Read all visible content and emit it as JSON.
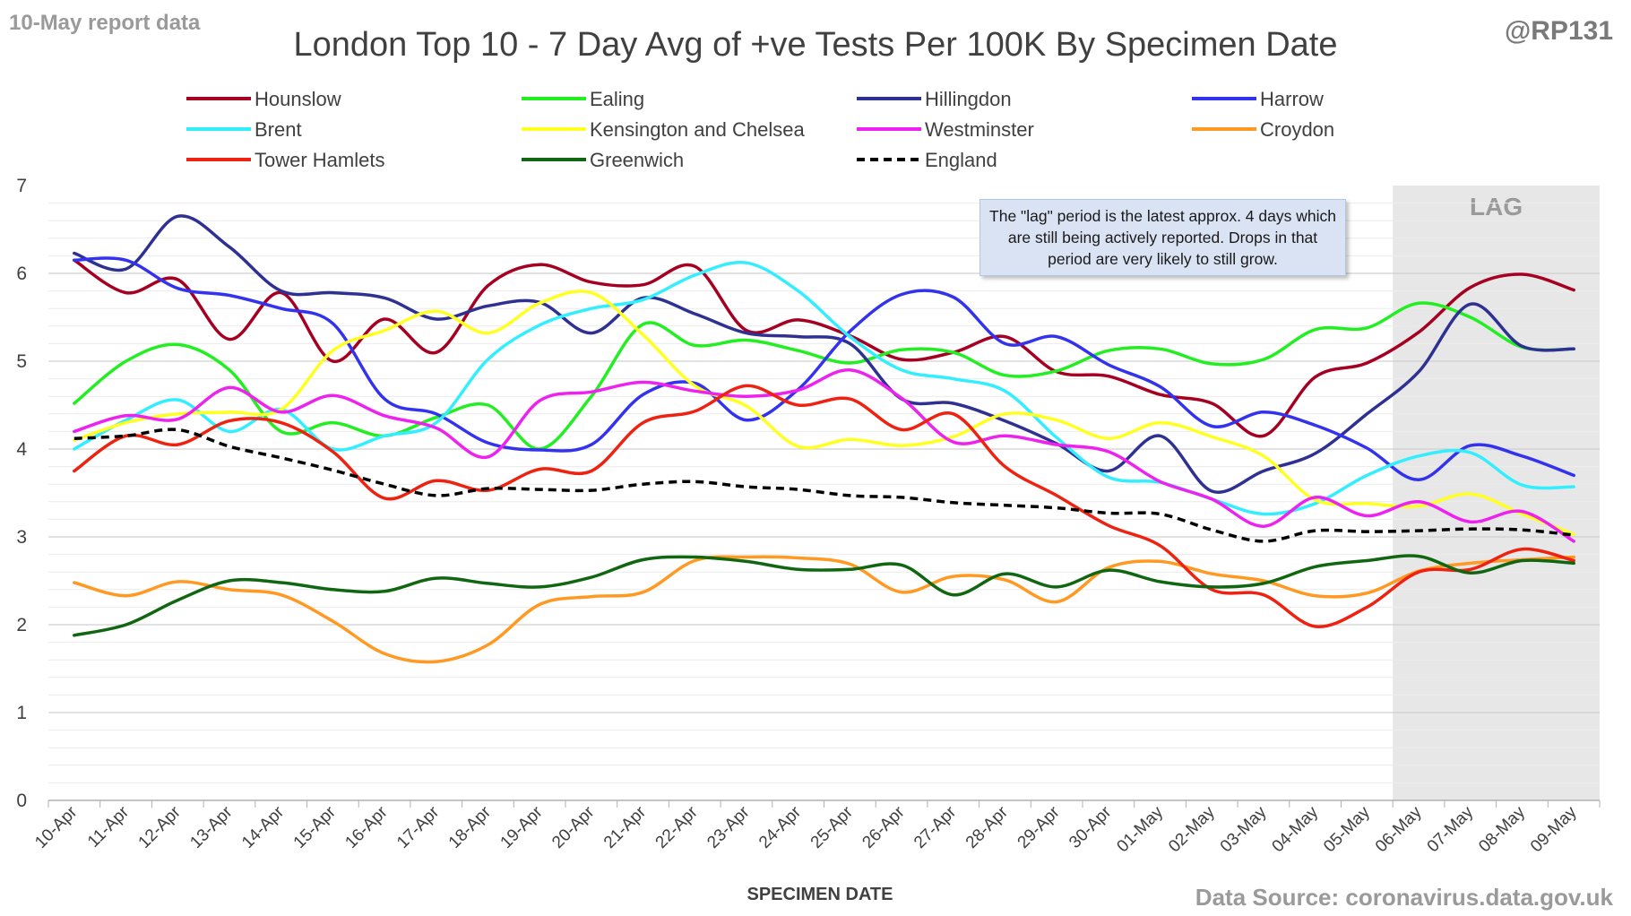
{
  "header": {
    "report_label": "10-May report data",
    "handle": "@RP131",
    "source": "Data Source: coronavirus.data.gov.uk"
  },
  "note": "The \"lag\" period is the latest approx. 4 days which are still being actively reported. Drops in that period are very likely to still grow.",
  "chart_data": {
    "type": "line",
    "title": "London Top 10 - 7 Day Avg of +ve Tests Per 100K By Specimen Date",
    "xlabel": "SPECIMEN DATE",
    "ylabel": "",
    "ylim": [
      0,
      7
    ],
    "yticks": [
      0,
      1,
      2,
      3,
      4,
      5,
      6,
      7
    ],
    "grid": true,
    "legend_position": "top",
    "lag_region": {
      "label": "LAG",
      "from": "06-May",
      "to": "09-May",
      "color": "#e7e7e7"
    },
    "categories": [
      "10-Apr",
      "11-Apr",
      "12-Apr",
      "13-Apr",
      "14-Apr",
      "15-Apr",
      "16-Apr",
      "17-Apr",
      "18-Apr",
      "19-Apr",
      "20-Apr",
      "21-Apr",
      "22-Apr",
      "23-Apr",
      "24-Apr",
      "25-Apr",
      "26-Apr",
      "27-Apr",
      "28-Apr",
      "29-Apr",
      "30-Apr",
      "01-May",
      "02-May",
      "03-May",
      "04-May",
      "05-May",
      "06-May",
      "07-May",
      "08-May",
      "09-May"
    ],
    "series": [
      {
        "name": "Hounslow",
        "color": "#a50021",
        "dash": false,
        "values": [
          6.15,
          5.78,
          5.93,
          5.25,
          5.78,
          5.0,
          5.48,
          5.1,
          5.86,
          6.1,
          5.9,
          5.87,
          6.08,
          5.35,
          5.47,
          5.29,
          5.02,
          5.1,
          5.28,
          4.88,
          4.83,
          4.62,
          4.52,
          4.15,
          4.82,
          4.98,
          5.33,
          5.84,
          5.99,
          5.81
        ]
      },
      {
        "name": "Ealing",
        "color": "#22ee22",
        "dash": false,
        "values": [
          4.52,
          5.0,
          5.19,
          4.9,
          4.2,
          4.3,
          4.15,
          4.36,
          4.5,
          4.0,
          4.6,
          5.42,
          5.18,
          5.24,
          5.12,
          4.98,
          5.13,
          5.1,
          4.84,
          4.89,
          5.12,
          5.14,
          4.97,
          5.02,
          5.36,
          5.38,
          5.66,
          5.5,
          5.16,
          5.14
        ]
      },
      {
        "name": "Hillingdon",
        "color": "#2e3192",
        "dash": false,
        "values": [
          6.23,
          6.05,
          6.65,
          6.3,
          5.8,
          5.78,
          5.72,
          5.48,
          5.63,
          5.67,
          5.32,
          5.72,
          5.54,
          5.32,
          5.28,
          5.2,
          4.57,
          4.52,
          4.32,
          4.06,
          3.75,
          4.15,
          3.52,
          3.75,
          3.95,
          4.4,
          4.88,
          5.65,
          5.17,
          5.14
        ]
      },
      {
        "name": "Harrow",
        "color": "#3333ee",
        "dash": false,
        "values": [
          6.15,
          6.15,
          5.83,
          5.75,
          5.6,
          5.43,
          4.57,
          4.4,
          4.07,
          3.99,
          4.05,
          4.62,
          4.75,
          4.33,
          4.68,
          5.34,
          5.76,
          5.73,
          5.2,
          5.28,
          4.96,
          4.71,
          4.26,
          4.42,
          4.27,
          4.01,
          3.65,
          4.04,
          3.92,
          3.7
        ]
      },
      {
        "name": "Brent",
        "color": "#33eeff",
        "dash": false,
        "values": [
          4.0,
          4.33,
          4.56,
          4.2,
          4.45,
          4.0,
          4.15,
          4.3,
          5.02,
          5.41,
          5.6,
          5.7,
          5.98,
          6.12,
          5.8,
          5.28,
          4.9,
          4.8,
          4.66,
          4.13,
          3.68,
          3.62,
          3.43,
          3.26,
          3.38,
          3.7,
          3.92,
          3.96,
          3.59,
          3.57
        ]
      },
      {
        "name": "Kensington and Chelsea",
        "color": "#ffff22",
        "dash": false,
        "values": [
          4.1,
          4.3,
          4.4,
          4.42,
          4.45,
          5.12,
          5.35,
          5.57,
          5.32,
          5.66,
          5.78,
          5.3,
          4.72,
          4.49,
          4.03,
          4.11,
          4.04,
          4.14,
          4.4,
          4.33,
          4.12,
          4.3,
          4.14,
          3.92,
          3.42,
          3.38,
          3.35,
          3.49,
          3.26,
          3.03
        ]
      },
      {
        "name": "Westminster",
        "color": "#ee22ee",
        "dash": false,
        "values": [
          4.2,
          4.38,
          4.34,
          4.7,
          4.42,
          4.61,
          4.38,
          4.24,
          3.91,
          4.55,
          4.65,
          4.76,
          4.66,
          4.6,
          4.67,
          4.9,
          4.58,
          4.08,
          4.15,
          4.05,
          3.97,
          3.63,
          3.43,
          3.12,
          3.45,
          3.24,
          3.4,
          3.17,
          3.29,
          2.95
        ]
      },
      {
        "name": "Croydon",
        "color": "#ff9922",
        "dash": false,
        "values": [
          2.48,
          2.33,
          2.49,
          2.4,
          2.34,
          2.04,
          1.67,
          1.58,
          1.77,
          2.23,
          2.32,
          2.37,
          2.73,
          2.77,
          2.76,
          2.69,
          2.37,
          2.55,
          2.51,
          2.26,
          2.65,
          2.72,
          2.58,
          2.5,
          2.33,
          2.36,
          2.61,
          2.7,
          2.74,
          2.77
        ]
      },
      {
        "name": "Tower Hamlets",
        "color": "#ee2211",
        "dash": false,
        "values": [
          3.75,
          4.15,
          4.05,
          4.32,
          4.3,
          3.97,
          3.44,
          3.64,
          3.53,
          3.77,
          3.75,
          4.3,
          4.43,
          4.72,
          4.5,
          4.57,
          4.22,
          4.4,
          3.8,
          3.47,
          3.13,
          2.9,
          2.4,
          2.34,
          1.98,
          2.2,
          2.6,
          2.63,
          2.86,
          2.73
        ]
      },
      {
        "name": "Greenwich",
        "color": "#116611",
        "dash": false,
        "values": [
          1.88,
          2.0,
          2.28,
          2.5,
          2.48,
          2.4,
          2.38,
          2.53,
          2.47,
          2.43,
          2.54,
          2.74,
          2.77,
          2.72,
          2.63,
          2.63,
          2.68,
          2.34,
          2.58,
          2.43,
          2.62,
          2.49,
          2.43,
          2.47,
          2.66,
          2.73,
          2.78,
          2.59,
          2.73,
          2.7
        ]
      },
      {
        "name": "England",
        "color": "#000000",
        "dash": true,
        "values": [
          4.12,
          4.15,
          4.22,
          4.03,
          3.9,
          3.76,
          3.6,
          3.47,
          3.55,
          3.54,
          3.53,
          3.6,
          3.63,
          3.57,
          3.54,
          3.47,
          3.45,
          3.39,
          3.36,
          3.33,
          3.27,
          3.26,
          3.08,
          2.95,
          3.07,
          3.06,
          3.07,
          3.09,
          3.08,
          3.02
        ]
      }
    ]
  }
}
